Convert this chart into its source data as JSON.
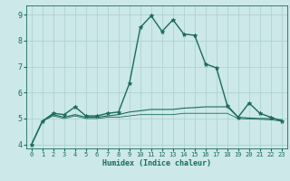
{
  "xlabel": "Humidex (Indice chaleur)",
  "ylabel": "",
  "xlim": [
    -0.5,
    23.5
  ],
  "ylim": [
    3.85,
    9.35
  ],
  "background_color": "#cce8e8",
  "grid_color": "#aacfcf",
  "line_color": "#1a6b5a",
  "xticks": [
    0,
    1,
    2,
    3,
    4,
    5,
    6,
    7,
    8,
    9,
    10,
    11,
    12,
    13,
    14,
    15,
    16,
    17,
    18,
    19,
    20,
    21,
    22,
    23
  ],
  "yticks": [
    4,
    5,
    6,
    7,
    8,
    9
  ],
  "series": [
    {
      "x": [
        0,
        1,
        2,
        3,
        4,
        5,
        6,
        7,
        8,
        9,
        10,
        11,
        12,
        13,
        14,
        15,
        16,
        17,
        18,
        19,
        20,
        21,
        22,
        23
      ],
      "y": [
        4.0,
        4.9,
        5.2,
        5.15,
        5.45,
        5.1,
        5.1,
        5.2,
        5.25,
        6.35,
        8.5,
        8.95,
        8.35,
        8.8,
        8.25,
        8.2,
        7.1,
        6.95,
        5.5,
        5.05,
        5.6,
        5.2,
        5.05,
        4.9
      ],
      "marker": "*",
      "markersize": 3.5,
      "linewidth": 1.0
    },
    {
      "x": [
        0,
        1,
        2,
        3,
        4,
        5,
        6,
        7,
        8,
        9,
        10,
        11,
        12,
        13,
        14,
        15,
        16,
        17,
        18,
        19,
        20,
        21,
        22,
        23
      ],
      "y": [
        4.0,
        4.9,
        5.15,
        5.05,
        5.15,
        5.05,
        5.05,
        5.1,
        5.15,
        5.25,
        5.3,
        5.35,
        5.35,
        5.35,
        5.4,
        5.42,
        5.45,
        5.45,
        5.45,
        5.05,
        5.02,
        5.0,
        5.0,
        4.95
      ],
      "marker": null,
      "markersize": 0,
      "linewidth": 0.8
    },
    {
      "x": [
        0,
        1,
        2,
        3,
        4,
        5,
        6,
        7,
        8,
        9,
        10,
        11,
        12,
        13,
        14,
        15,
        16,
        17,
        18,
        19,
        20,
        21,
        22,
        23
      ],
      "y": [
        4.0,
        4.9,
        5.1,
        5.0,
        5.1,
        5.0,
        5.0,
        5.05,
        5.05,
        5.1,
        5.15,
        5.15,
        5.15,
        5.15,
        5.2,
        5.2,
        5.2,
        5.2,
        5.2,
        5.0,
        4.98,
        4.97,
        4.95,
        4.9
      ],
      "marker": null,
      "markersize": 0,
      "linewidth": 0.6
    }
  ]
}
